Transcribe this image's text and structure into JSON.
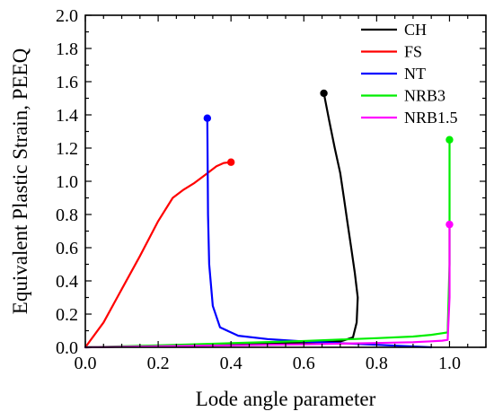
{
  "chart_data": {
    "type": "line",
    "title": "",
    "xlabel": "Lode angle parameter",
    "ylabel": "Equivalent Plastic Strain, PEEQ",
    "xlim": [
      0.0,
      1.1
    ],
    "ylim": [
      0.0,
      2.0
    ],
    "x_ticks": [
      "0.0",
      "0.2",
      "0.4",
      "0.6",
      "0.8",
      "1.0"
    ],
    "y_ticks": [
      "0.0",
      "0.2",
      "0.4",
      "0.6",
      "0.8",
      "1.0",
      "1.2",
      "1.4",
      "1.6",
      "1.8",
      "2.0"
    ],
    "legend_position": "top-right",
    "series": [
      {
        "name": "CH",
        "color": "#000000",
        "x": [
          0.0,
          0.1,
          0.2,
          0.3,
          0.4,
          0.5,
          0.6,
          0.7,
          0.735,
          0.745,
          0.748,
          0.74,
          0.73,
          0.72,
          0.71,
          0.7,
          0.685,
          0.67,
          0.655
        ],
        "y": [
          0.0,
          0.004,
          0.008,
          0.012,
          0.017,
          0.022,
          0.028,
          0.035,
          0.06,
          0.15,
          0.3,
          0.45,
          0.6,
          0.75,
          0.9,
          1.05,
          1.2,
          1.36,
          1.53
        ]
      },
      {
        "name": "FS",
        "color": "#ff0000",
        "x": [
          0.0,
          0.05,
          0.1,
          0.15,
          0.2,
          0.24,
          0.27,
          0.3,
          0.33,
          0.36,
          0.38,
          0.4
        ],
        "y": [
          0.0,
          0.15,
          0.35,
          0.55,
          0.76,
          0.9,
          0.95,
          0.99,
          1.04,
          1.09,
          1.11,
          1.115
        ]
      },
      {
        "name": "NT",
        "color": "#0000ff",
        "x": [
          0.95,
          0.8,
          0.7,
          0.6,
          0.5,
          0.42,
          0.37,
          0.35,
          0.34,
          0.337,
          0.336,
          0.335
        ],
        "y": [
          0.0,
          0.015,
          0.025,
          0.035,
          0.05,
          0.07,
          0.12,
          0.25,
          0.5,
          0.8,
          1.1,
          1.38
        ]
      },
      {
        "name": "NRB3",
        "color": "#00ee00",
        "x": [
          0.0,
          0.2,
          0.4,
          0.6,
          0.8,
          0.9,
          0.95,
          0.98,
          0.995,
          1.0,
          1.0
        ],
        "y": [
          0.0,
          0.012,
          0.025,
          0.038,
          0.055,
          0.065,
          0.075,
          0.085,
          0.09,
          0.5,
          1.25
        ]
      },
      {
        "name": "NRB1.5",
        "color": "#ff00ff",
        "x": [
          0.0,
          0.2,
          0.4,
          0.6,
          0.8,
          0.9,
          0.95,
          0.98,
          0.995,
          1.0,
          1.0
        ],
        "y": [
          0.0,
          0.006,
          0.012,
          0.018,
          0.026,
          0.031,
          0.036,
          0.04,
          0.045,
          0.3,
          0.74
        ]
      }
    ]
  }
}
